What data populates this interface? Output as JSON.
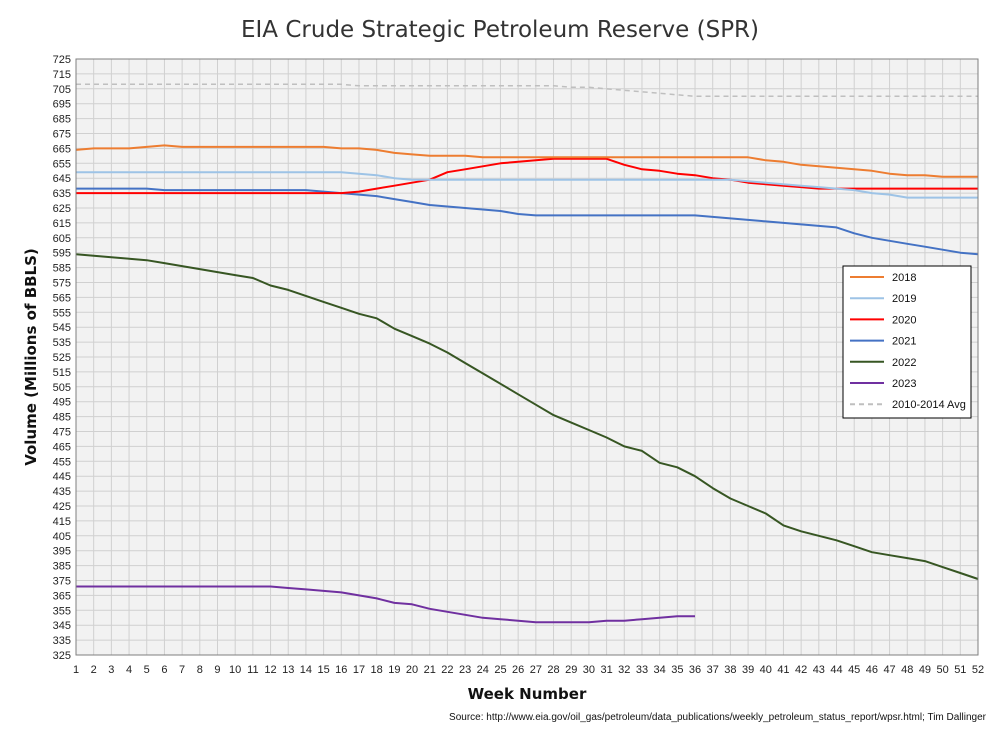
{
  "chart_data": {
    "type": "line",
    "title": "EIA Crude Strategic Petroleum Reserve (SPR)",
    "xlabel": "Week Number",
    "ylabel": "Volume (Millions of BBLS)",
    "source": "Source: http://www.eia.gov/oil_gas/petroleum/data_publications/weekly_petroleum_status_report/wpsr.html; Tim Dallinger",
    "xlim": [
      1,
      52
    ],
    "ylim": [
      325,
      725
    ],
    "ytick_step": 10,
    "grid": true,
    "legend_position": "right",
    "x": [
      1,
      2,
      3,
      4,
      5,
      6,
      7,
      8,
      9,
      10,
      11,
      12,
      13,
      14,
      15,
      16,
      17,
      18,
      19,
      20,
      21,
      22,
      23,
      24,
      25,
      26,
      27,
      28,
      29,
      30,
      31,
      32,
      33,
      34,
      35,
      36,
      37,
      38,
      39,
      40,
      41,
      42,
      43,
      44,
      45,
      46,
      47,
      48,
      49,
      50,
      51,
      52
    ],
    "series": [
      {
        "name": "2018",
        "color": "#ed7d31",
        "dashed": false,
        "values": [
          664,
          665,
          665,
          665,
          666,
          667,
          666,
          666,
          666,
          666,
          666,
          666,
          666,
          666,
          666,
          665,
          665,
          664,
          662,
          661,
          660,
          660,
          660,
          659,
          659,
          659,
          659,
          659,
          659,
          659,
          659,
          659,
          659,
          659,
          659,
          659,
          659,
          659,
          659,
          657,
          656,
          654,
          653,
          652,
          651,
          650,
          648,
          647,
          647,
          646,
          646,
          646
        ]
      },
      {
        "name": "2019",
        "color": "#9dc3e6",
        "dashed": false,
        "values": [
          649,
          649,
          649,
          649,
          649,
          649,
          649,
          649,
          649,
          649,
          649,
          649,
          649,
          649,
          649,
          649,
          648,
          647,
          645,
          644,
          644,
          644,
          644,
          644,
          644,
          644,
          644,
          644,
          644,
          644,
          644,
          644,
          644,
          644,
          644,
          644,
          644,
          644,
          643,
          642,
          641,
          640,
          639,
          638,
          637,
          635,
          634,
          632,
          632,
          632,
          632,
          632
        ]
      },
      {
        "name": "2020",
        "color": "#ff0000",
        "dashed": false,
        "values": [
          635,
          635,
          635,
          635,
          635,
          635,
          635,
          635,
          635,
          635,
          635,
          635,
          635,
          635,
          635,
          635,
          636,
          638,
          640,
          642,
          644,
          649,
          651,
          653,
          655,
          656,
          657,
          658,
          658,
          658,
          658,
          654,
          651,
          650,
          648,
          647,
          645,
          644,
          642,
          641,
          640,
          639,
          638,
          638,
          638,
          638,
          638,
          638,
          638,
          638,
          638,
          638
        ]
      },
      {
        "name": "2021",
        "color": "#4472c4",
        "dashed": false,
        "values": [
          638,
          638,
          638,
          638,
          638,
          637,
          637,
          637,
          637,
          637,
          637,
          637,
          637,
          637,
          636,
          635,
          634,
          633,
          631,
          629,
          627,
          626,
          625,
          624,
          623,
          621,
          620,
          620,
          620,
          620,
          620,
          620,
          620,
          620,
          620,
          620,
          619,
          618,
          617,
          616,
          615,
          614,
          613,
          612,
          608,
          605,
          603,
          601,
          599,
          597,
          595,
          594
        ]
      },
      {
        "name": "2022",
        "color": "#375623",
        "dashed": false,
        "values": [
          594,
          593,
          592,
          591,
          590,
          588,
          586,
          584,
          582,
          580,
          578,
          573,
          570,
          566,
          562,
          558,
          554,
          551,
          544,
          539,
          534,
          528,
          521,
          514,
          507,
          500,
          493,
          486,
          481,
          476,
          471,
          465,
          462,
          454,
          451,
          445,
          437,
          430,
          425,
          420,
          412,
          408,
          405,
          402,
          398,
          394,
          392,
          390,
          388,
          384,
          380,
          376
        ]
      },
      {
        "name": "2023",
        "color": "#7030a0",
        "dashed": false,
        "values": [
          371,
          371,
          371,
          371,
          371,
          371,
          371,
          371,
          371,
          371,
          371,
          371,
          370,
          369,
          368,
          367,
          365,
          363,
          360,
          359,
          356,
          354,
          352,
          350,
          349,
          348,
          347,
          347,
          347,
          347,
          348,
          348,
          349,
          350,
          351,
          351,
          null,
          null,
          null,
          null,
          null,
          null,
          null,
          null,
          null,
          null,
          null,
          null,
          null,
          null,
          null,
          null
        ]
      },
      {
        "name": "2010-2014 Avg",
        "color": "#bfbfbf",
        "dashed": true,
        "values": [
          708,
          708,
          708,
          708,
          708,
          708,
          708,
          708,
          708,
          708,
          708,
          708,
          708,
          708,
          708,
          708,
          707,
          707,
          707,
          707,
          707,
          707,
          707,
          707,
          707,
          707,
          707,
          707,
          706,
          706,
          705,
          704,
          703,
          702,
          701,
          700,
          700,
          700,
          700,
          700,
          700,
          700,
          700,
          700,
          700,
          700,
          700,
          700,
          700,
          700,
          700,
          700
        ]
      }
    ]
  }
}
